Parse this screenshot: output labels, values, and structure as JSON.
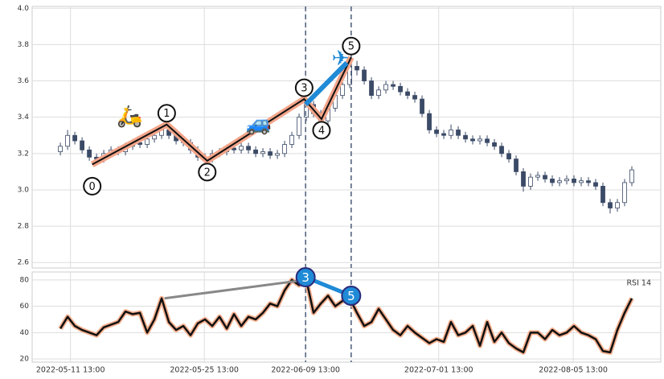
{
  "chart_data": [
    {
      "type": "candlestick",
      "xlim": [
        -3.9,
        83
      ],
      "ylim": [
        2.57,
        4.01
      ],
      "yticks": [
        2.6,
        2.8,
        {
          "value": 3,
          "label": "3.0"
        },
        3.2,
        3.4,
        3.6,
        3.8,
        {
          "value": 4,
          "label": "4.0"
        }
      ],
      "grid": true,
      "up_color": "#ffffff",
      "down_color": "#3b4a66",
      "open": [
        3.21,
        3.24,
        3.3,
        3.27,
        3.22,
        3.18,
        3.17,
        3.2,
        3.22,
        3.21,
        3.24,
        3.26,
        3.25,
        3.28,
        3.3,
        3.33,
        3.3,
        3.27,
        3.26,
        3.22,
        3.18,
        3.17,
        3.2,
        3.21,
        3.23,
        3.22,
        3.24,
        3.22,
        3.2,
        3.21,
        3.19,
        3.2,
        3.25,
        3.3,
        3.4,
        3.47,
        3.42,
        3.38,
        3.45,
        3.52,
        3.58,
        3.68,
        3.66,
        3.6,
        3.52,
        3.55,
        3.58,
        3.57,
        3.54,
        3.52,
        3.5,
        3.42,
        3.33,
        3.31,
        3.3,
        3.33,
        3.3,
        3.28,
        3.27,
        3.28,
        3.26,
        3.24,
        3.2,
        3.17,
        3.1,
        3.02,
        3.07,
        3.08,
        3.06,
        3.04,
        3.05,
        3.06,
        3.04,
        3.05,
        3.04,
        3.02,
        2.93,
        2.9,
        2.93,
        3.04
      ],
      "high": [
        3.26,
        3.33,
        3.32,
        3.29,
        3.24,
        3.2,
        3.22,
        3.24,
        3.24,
        3.26,
        3.28,
        3.28,
        3.3,
        3.32,
        3.36,
        3.35,
        3.32,
        3.29,
        3.28,
        3.24,
        3.2,
        3.22,
        3.23,
        3.25,
        3.25,
        3.26,
        3.26,
        3.24,
        3.23,
        3.23,
        3.22,
        3.27,
        3.32,
        3.42,
        3.5,
        3.49,
        3.44,
        3.47,
        3.54,
        3.61,
        3.72,
        3.71,
        3.68,
        3.62,
        3.57,
        3.6,
        3.6,
        3.59,
        3.56,
        3.54,
        3.52,
        3.44,
        3.35,
        3.33,
        3.36,
        3.35,
        3.32,
        3.3,
        3.3,
        3.3,
        3.28,
        3.26,
        3.22,
        3.19,
        3.12,
        3.09,
        3.1,
        3.1,
        3.08,
        3.07,
        3.08,
        3.08,
        3.07,
        3.07,
        3.06,
        3.04,
        2.95,
        2.95,
        3.06,
        3.13
      ],
      "low": [
        3.19,
        3.22,
        3.25,
        3.2,
        3.16,
        3.14,
        3.15,
        3.18,
        3.19,
        3.19,
        3.22,
        3.23,
        3.23,
        3.26,
        3.28,
        3.28,
        3.25,
        3.24,
        3.2,
        3.16,
        3.14,
        3.15,
        3.18,
        3.19,
        3.2,
        3.2,
        3.2,
        3.18,
        3.18,
        3.17,
        3.17,
        3.18,
        3.23,
        3.28,
        3.38,
        3.4,
        3.36,
        3.36,
        3.43,
        3.5,
        3.56,
        3.63,
        3.58,
        3.5,
        3.5,
        3.53,
        3.55,
        3.52,
        3.5,
        3.48,
        3.4,
        3.31,
        3.29,
        3.28,
        3.28,
        3.28,
        3.26,
        3.25,
        3.25,
        3.24,
        3.22,
        3.18,
        3.15,
        3.08,
        2.99,
        3.0,
        3.05,
        3.04,
        3.02,
        3.02,
        3.03,
        3.02,
        3.02,
        3.02,
        3.0,
        2.91,
        2.87,
        2.88,
        2.91,
        3.02
      ],
      "close": [
        3.24,
        3.3,
        3.27,
        3.22,
        3.18,
        3.17,
        3.2,
        3.22,
        3.21,
        3.24,
        3.26,
        3.25,
        3.28,
        3.3,
        3.33,
        3.3,
        3.27,
        3.26,
        3.22,
        3.18,
        3.17,
        3.2,
        3.21,
        3.23,
        3.22,
        3.24,
        3.22,
        3.2,
        3.21,
        3.19,
        3.2,
        3.25,
        3.3,
        3.4,
        3.47,
        3.42,
        3.38,
        3.45,
        3.52,
        3.58,
        3.68,
        3.66,
        3.6,
        3.52,
        3.55,
        3.58,
        3.57,
        3.54,
        3.52,
        3.5,
        3.42,
        3.33,
        3.31,
        3.3,
        3.33,
        3.3,
        3.28,
        3.27,
        3.28,
        3.26,
        3.24,
        3.2,
        3.17,
        3.1,
        3.02,
        3.07,
        3.08,
        3.06,
        3.04,
        3.05,
        3.06,
        3.04,
        3.05,
        3.04,
        3.02,
        2.93,
        2.9,
        2.93,
        3.04,
        3.11
      ],
      "waves": {
        "labels": [
          "0",
          "1",
          "2",
          "3",
          "4",
          "5"
        ],
        "x": [
          4.4,
          14.7,
          20.3,
          33.7,
          36.1,
          40.2
        ],
        "values": [
          3.14,
          3.36,
          3.16,
          3.5,
          3.39,
          3.73
        ],
        "color": "#111111",
        "glow_color": "#f4a58a"
      },
      "highlight": {
        "x": [
          33.9,
          39.6
        ],
        "values": [
          3.47,
          3.7
        ],
        "color": "#1f8ad6"
      },
      "icons": [
        {
          "symbol": "🛵",
          "x": 9.6,
          "value": 3.4
        },
        {
          "symbol": "🚙",
          "x": 27.4,
          "value": 3.36
        },
        {
          "symbol": "✈",
          "x": 38.7,
          "value": 3.72
        }
      ],
      "vlines": {
        "x": [
          33.9,
          40.2
        ],
        "color": "#4a5a78"
      }
    },
    {
      "type": "line",
      "title": "RSI 14",
      "xlim": [
        -3.9,
        83
      ],
      "ylim": [
        17.6,
        86
      ],
      "yticks": [
        20,
        40,
        60,
        80
      ],
      "grid": true,
      "xticks": [
        {
          "value": 1.4,
          "label": "2022-05-11 13:00"
        },
        {
          "value": 19.9,
          "label": "2022-05-25 13:00"
        },
        {
          "value": 33.9,
          "label": "2022-06-09 13:00"
        },
        {
          "value": 52.3,
          "label": "2022-07-01 13:00"
        },
        {
          "value": 70.9,
          "label": "2022-08-05 13:00"
        }
      ],
      "series": [
        {
          "name": "RSI",
          "color": "#111111",
          "glow_color": "#f5b08f",
          "values": [
            43,
            52,
            45,
            42,
            40,
            38,
            44,
            46,
            48,
            56,
            54,
            55,
            40,
            50,
            66,
            48,
            42,
            45,
            38,
            47,
            50,
            45,
            52,
            43,
            54,
            45,
            52,
            50,
            55,
            62,
            60,
            72,
            80,
            76,
            80,
            55,
            62,
            68,
            60,
            64,
            66,
            55,
            45,
            48,
            58,
            50,
            42,
            38,
            45,
            40,
            36,
            32,
            35,
            33,
            48,
            38,
            40,
            45,
            30,
            48,
            33,
            40,
            32,
            28,
            25,
            40,
            40,
            35,
            42,
            38,
            40,
            45,
            40,
            38,
            35,
            26,
            25,
            42,
            55,
            66
          ]
        }
      ],
      "trend_line": {
        "x": [
          14.4,
          33.9
        ],
        "values": [
          66,
          80
        ],
        "color": "#888888"
      },
      "markers": {
        "labels": [
          "3",
          "5"
        ],
        "x": [
          33.9,
          40.2
        ],
        "values": [
          82,
          68
        ],
        "color": "#1f8ad6",
        "edge": "#2a2a7a"
      },
      "vlines": {
        "x": [
          33.9,
          40.2
        ],
        "color": "#4a5a78"
      }
    }
  ]
}
